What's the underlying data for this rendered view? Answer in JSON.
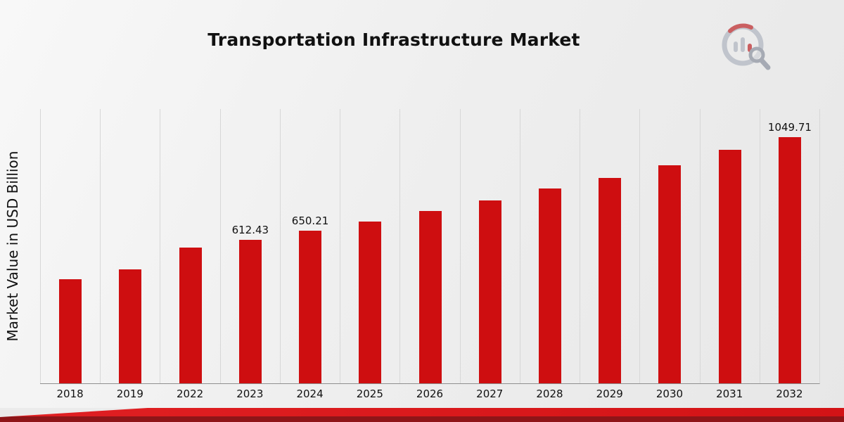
{
  "header": {
    "title": "Transportation Infrastructure Market"
  },
  "axes": {
    "y_label": "Market Value in USD Billion"
  },
  "chart_data": {
    "type": "bar",
    "title": "Transportation Infrastructure Market",
    "xlabel": "",
    "ylabel": "Market Value in USD Billion",
    "categories": [
      "2018",
      "2019",
      "2022",
      "2023",
      "2024",
      "2025",
      "2026",
      "2027",
      "2028",
      "2029",
      "2030",
      "2031",
      "2032"
    ],
    "values": [
      444,
      486,
      579,
      612.43,
      650.21,
      690,
      735,
      780,
      830,
      876,
      930,
      996,
      1049.71
    ],
    "data_labels": {
      "2023": "612.43",
      "2024": "650.21",
      "2032": "1049.71"
    },
    "ylim": [
      0,
      1170
    ],
    "bar_color": "#ce0e10",
    "grid": "vertical-only",
    "legend": "none"
  },
  "branding": {
    "logo": "market-research-chart-logo",
    "accent_red": "#d31316",
    "accent_dark_red": "#8e1518",
    "logo_gray": "#b9bec7"
  }
}
